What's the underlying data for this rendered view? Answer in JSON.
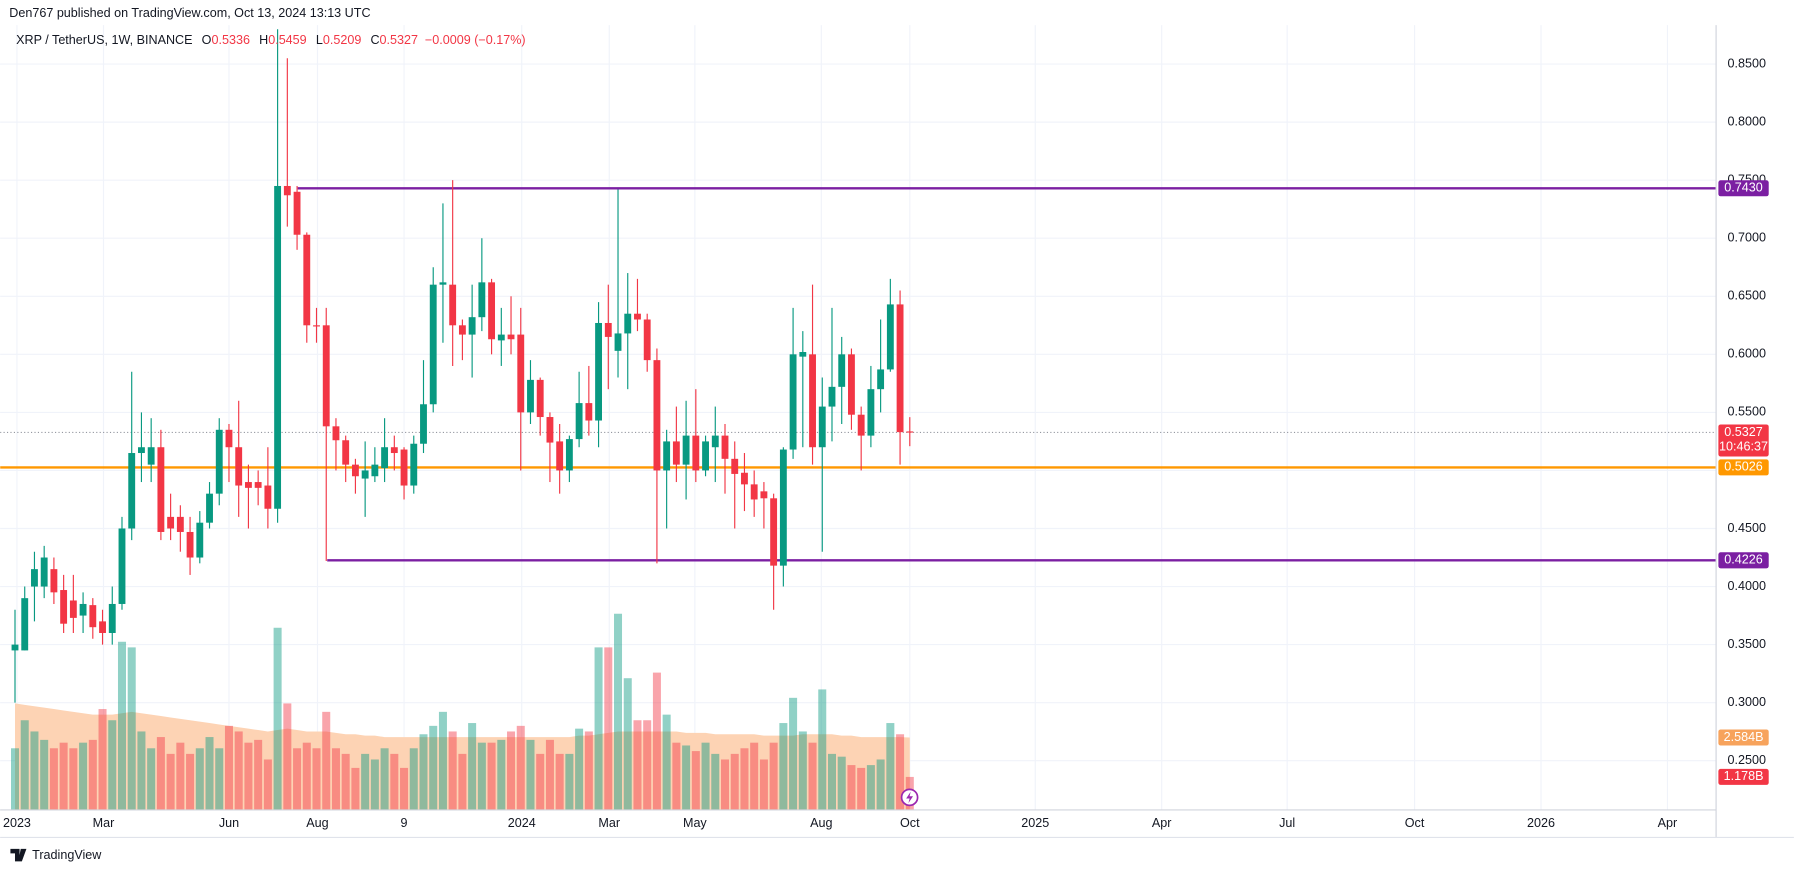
{
  "header": {
    "publisher": "Den767 published on TradingView.com, Oct 13, 2024 13:13 UTC"
  },
  "footer": {
    "brand": "TradingView"
  },
  "chart_data": {
    "type": "candlestick",
    "title": "XRP / TetherUS, 1W, BINANCE",
    "legend_labels": {
      "open": "O",
      "high": "H",
      "low": "L",
      "close": "C"
    },
    "change": "−0.0009 (−0.17%)",
    "up_color": "#089981",
    "down_color": "#f23645",
    "open": [
      0.345,
      0.345,
      0.4,
      0.4,
      0.415,
      0.397,
      0.388,
      0.375,
      0.384,
      0.37,
      0.36,
      0.385,
      0.45,
      0.515,
      0.505,
      0.52,
      0.46,
      0.46,
      0.447,
      0.425,
      0.455,
      0.48,
      0.535,
      0.52,
      0.49,
      0.49,
      0.487,
      0.467,
      0.745,
      0.74,
      0.703,
      0.625,
      0.625,
      0.538,
      0.526,
      0.505,
      0.493,
      0.495,
      0.502,
      0.52,
      0.518,
      0.487,
      0.523,
      0.557,
      0.66,
      0.66,
      0.625,
      0.617,
      0.632,
      0.662,
      0.612,
      0.617,
      0.617,
      0.55,
      0.578,
      0.546,
      0.525,
      0.5,
      0.527,
      0.558,
      0.543,
      0.627,
      0.603,
      0.618,
      0.635,
      0.63,
      0.595,
      0.5,
      0.525,
      0.505,
      0.53,
      0.5,
      0.52,
      0.53,
      0.51,
      0.498,
      0.488,
      0.482,
      0.476,
      0.418,
      0.518,
      0.598,
      0.6,
      0.52,
      0.555,
      0.572,
      0.6,
      0.548,
      0.53,
      0.57,
      0.587,
      0.643,
      0.5336
    ],
    "high": [
      0.38,
      0.4,
      0.43,
      0.435,
      0.425,
      0.41,
      0.41,
      0.395,
      0.39,
      0.38,
      0.4,
      0.46,
      0.585,
      0.55,
      0.545,
      0.535,
      0.48,
      0.47,
      0.46,
      0.465,
      0.49,
      0.545,
      0.54,
      0.56,
      0.505,
      0.5,
      0.52,
      0.88,
      0.855,
      0.745,
      0.705,
      0.64,
      0.64,
      0.545,
      0.53,
      0.51,
      0.525,
      0.52,
      0.545,
      0.53,
      0.52,
      0.53,
      0.595,
      0.675,
      0.73,
      0.75,
      0.63,
      0.66,
      0.7,
      0.665,
      0.64,
      0.65,
      0.64,
      0.595,
      0.58,
      0.55,
      0.54,
      0.53,
      0.585,
      0.59,
      0.645,
      0.66,
      0.742,
      0.67,
      0.665,
      0.635,
      0.605,
      0.535,
      0.555,
      0.56,
      0.57,
      0.53,
      0.555,
      0.54,
      0.525,
      0.515,
      0.5,
      0.49,
      0.48,
      0.52,
      0.64,
      0.62,
      0.66,
      0.58,
      0.64,
      0.615,
      0.605,
      0.555,
      0.59,
      0.63,
      0.665,
      0.655,
      0.5459
    ],
    "low": [
      0.3,
      0.345,
      0.37,
      0.39,
      0.385,
      0.36,
      0.36,
      0.36,
      0.355,
      0.35,
      0.35,
      0.38,
      0.44,
      0.49,
      0.49,
      0.44,
      0.44,
      0.43,
      0.41,
      0.42,
      0.45,
      0.47,
      0.49,
      0.46,
      0.45,
      0.47,
      0.45,
      0.455,
      0.71,
      0.69,
      0.61,
      0.61,
      0.422,
      0.5,
      0.49,
      0.48,
      0.46,
      0.49,
      0.49,
      0.5,
      0.475,
      0.48,
      0.515,
      0.55,
      0.61,
      0.59,
      0.595,
      0.58,
      0.62,
      0.6,
      0.59,
      0.6,
      0.5,
      0.54,
      0.53,
      0.49,
      0.48,
      0.49,
      0.52,
      0.53,
      0.52,
      0.57,
      0.58,
      0.57,
      0.62,
      0.585,
      0.42,
      0.45,
      0.49,
      0.475,
      0.49,
      0.495,
      0.49,
      0.48,
      0.45,
      0.465,
      0.46,
      0.45,
      0.38,
      0.4,
      0.51,
      0.52,
      0.505,
      0.43,
      0.525,
      0.54,
      0.535,
      0.5,
      0.52,
      0.55,
      0.585,
      0.505,
      0.5209
    ],
    "close": [
      0.35,
      0.39,
      0.415,
      0.425,
      0.395,
      0.368,
      0.373,
      0.385,
      0.365,
      0.36,
      0.385,
      0.45,
      0.515,
      0.52,
      0.52,
      0.447,
      0.45,
      0.447,
      0.425,
      0.455,
      0.48,
      0.535,
      0.52,
      0.487,
      0.485,
      0.485,
      0.467,
      0.745,
      0.737,
      0.703,
      0.625,
      0.624,
      0.538,
      0.526,
      0.505,
      0.495,
      0.5,
      0.505,
      0.52,
      0.515,
      0.487,
      0.523,
      0.557,
      0.66,
      0.662,
      0.625,
      0.617,
      0.632,
      0.662,
      0.613,
      0.617,
      0.613,
      0.55,
      0.578,
      0.546,
      0.524,
      0.5,
      0.527,
      0.558,
      0.543,
      0.627,
      0.615,
      0.618,
      0.635,
      0.63,
      0.595,
      0.5,
      0.525,
      0.505,
      0.53,
      0.5,
      0.525,
      0.53,
      0.51,
      0.497,
      0.488,
      0.475,
      0.476,
      0.418,
      0.518,
      0.6,
      0.602,
      0.52,
      0.555,
      0.572,
      0.6,
      0.548,
      0.53,
      0.57,
      0.587,
      0.643,
      0.533,
      0.5327
    ],
    "volume": {
      "values": [
        2.2,
        3.2,
        2.8,
        2.5,
        2.2,
        2.4,
        2.2,
        2.4,
        2.5,
        3.6,
        3.2,
        6.0,
        5.8,
        2.8,
        2.2,
        2.6,
        2.0,
        2.4,
        2.0,
        2.2,
        2.6,
        2.2,
        3.0,
        2.8,
        2.4,
        2.5,
        1.8,
        6.5,
        3.8,
        2.2,
        2.4,
        2.2,
        3.5,
        2.2,
        2.0,
        1.5,
        2.0,
        1.8,
        2.2,
        2.0,
        1.5,
        2.2,
        2.7,
        3.0,
        3.5,
        2.8,
        2.0,
        3.1,
        2.4,
        2.4,
        2.5,
        2.8,
        3.0,
        2.5,
        2.0,
        2.5,
        2.0,
        2.0,
        2.9,
        2.8,
        5.8,
        5.8,
        7.0,
        4.7,
        3.2,
        3.2,
        4.9,
        3.4,
        2.4,
        2.3,
        2.1,
        2.4,
        2.0,
        1.8,
        2.0,
        2.2,
        2.4,
        1.8,
        2.4,
        3.1,
        4.0,
        2.8,
        2.4,
        4.3,
        2.0,
        1.9,
        1.6,
        1.5,
        1.6,
        1.8,
        3.1,
        2.7,
        1.178
      ],
      "ma": [
        3.8,
        3.75,
        3.7,
        3.65,
        3.6,
        3.55,
        3.5,
        3.45,
        3.4,
        3.4,
        3.4,
        3.45,
        3.5,
        3.45,
        3.4,
        3.35,
        3.3,
        3.25,
        3.2,
        3.15,
        3.1,
        3.05,
        3.0,
        2.95,
        2.9,
        2.85,
        2.8,
        2.85,
        2.9,
        2.85,
        2.8,
        2.8,
        2.8,
        2.75,
        2.7,
        2.7,
        2.65,
        2.65,
        2.6,
        2.6,
        2.6,
        2.6,
        2.6,
        2.6,
        2.6,
        2.6,
        2.6,
        2.6,
        2.6,
        2.6,
        2.6,
        2.6,
        2.6,
        2.6,
        2.6,
        2.6,
        2.6,
        2.6,
        2.65,
        2.65,
        2.7,
        2.75,
        2.8,
        2.8,
        2.8,
        2.8,
        2.8,
        2.8,
        2.8,
        2.75,
        2.75,
        2.75,
        2.7,
        2.7,
        2.7,
        2.7,
        2.7,
        2.65,
        2.65,
        2.65,
        2.65,
        2.7,
        2.7,
        2.7,
        2.7,
        2.65,
        2.65,
        2.6,
        2.6,
        2.6,
        2.6,
        2.6,
        2.584
      ],
      "ma_color": "#fdd3b4",
      "ylim": [
        0,
        28
      ],
      "labels": [
        {
          "value": 2.584,
          "label": "2.584B",
          "color": "#f7a35c"
        },
        {
          "value": 1.178,
          "label": "1.178B",
          "color": "#f23645"
        }
      ]
    },
    "levels": [
      {
        "value": 0.743,
        "label": "0.7430",
        "color": "#7b1fa2",
        "x_start": 29.06
      },
      {
        "value": 0.5026,
        "label": "0.5026",
        "color": "#ff9800"
      },
      {
        "value": 0.4226,
        "label": "0.4226",
        "color": "#7b1fa2",
        "x_start": 32.1
      }
    ],
    "last_price": {
      "value": 0.5327,
      "countdown": "10:46:37",
      "color": "#f23645"
    },
    "ylim": [
      0.2076,
      0.8835
    ],
    "yticks": [
      {
        "value": 0.25,
        "label": "0.2500"
      },
      {
        "value": 0.3,
        "label": "0.3000"
      },
      {
        "value": 0.35,
        "label": "0.3500"
      },
      {
        "value": 0.4,
        "label": "0.4000"
      },
      {
        "value": 0.45,
        "label": "0.4500"
      },
      {
        "value": 0.5,
        "label": "0.5000"
      },
      {
        "value": 0.55,
        "label": "0.5500"
      },
      {
        "value": 0.6,
        "label": "0.6000"
      },
      {
        "value": 0.65,
        "label": "0.6500"
      },
      {
        "value": 0.7,
        "label": "0.7000"
      },
      {
        "value": 0.75,
        "label": "0.7500"
      },
      {
        "value": 0.8,
        "label": "0.8000"
      },
      {
        "value": 0.85,
        "label": "0.8500"
      }
    ],
    "xlim": [
      -1.53,
      174.9
    ],
    "xticks": [
      {
        "value": 0.2,
        "label": "2023"
      },
      {
        "value": 9.1,
        "label": "Mar"
      },
      {
        "value": 22,
        "label": "Jun"
      },
      {
        "value": 31.1,
        "label": "Aug"
      },
      {
        "value": 40,
        "label": "9"
      },
      {
        "value": 52.1,
        "label": "2024"
      },
      {
        "value": 61.1,
        "label": "Mar"
      },
      {
        "value": 69.9,
        "label": "May"
      },
      {
        "value": 82.9,
        "label": "Aug"
      },
      {
        "value": 92,
        "label": "Oct"
      },
      {
        "value": 104.9,
        "label": "2025"
      },
      {
        "value": 117.9,
        "label": "Apr"
      },
      {
        "value": 130.8,
        "label": "Jul"
      },
      {
        "value": 143.9,
        "label": "Oct"
      },
      {
        "value": 156.9,
        "label": "2026"
      },
      {
        "value": 169.9,
        "label": "Apr"
      }
    ],
    "grid": true
  }
}
